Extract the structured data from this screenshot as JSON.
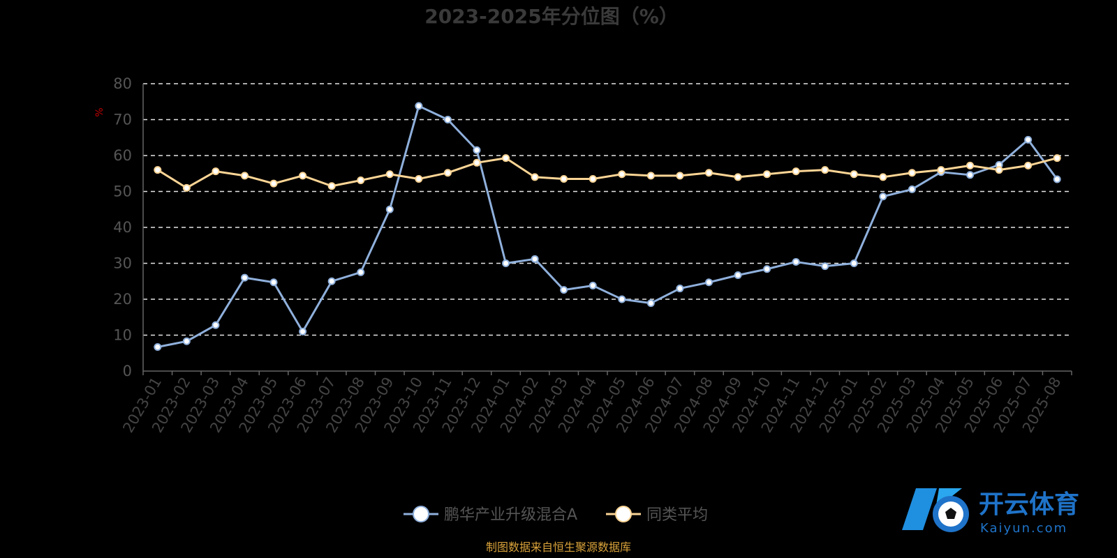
{
  "chart_data": {
    "type": "line",
    "title": "2023-2025年分位图（%）",
    "ylabel": "%",
    "ylim": [
      0,
      80
    ],
    "yticks": [
      0,
      10,
      20,
      30,
      40,
      50,
      60,
      70,
      80
    ],
    "grid": true,
    "legend_position": "bottom-center",
    "categories": [
      "2023-01",
      "2023-02",
      "2023-03",
      "2023-04",
      "2023-05",
      "2023-06",
      "2023-07",
      "2023-08",
      "2023-09",
      "2023-10",
      "2023-11",
      "2023-12",
      "2024-01",
      "2024-02",
      "2024-03",
      "2024-04",
      "2024-05",
      "2024-06",
      "2024-07",
      "2024-08",
      "2024-09",
      "2024-10",
      "2024-11",
      "2024-12",
      "2025-01",
      "2025-02",
      "2025-03",
      "2025-04",
      "2025-05",
      "2025-06",
      "2025-07",
      "2025-08"
    ],
    "series": [
      {
        "name": "鹏华产业升级混合A",
        "color": "#8fb0dc",
        "values": [
          6.7,
          8.3,
          12.8,
          26.0,
          24.7,
          11.0,
          25.0,
          27.5,
          45.0,
          73.8,
          70.0,
          61.5,
          30.0,
          31.2,
          22.6,
          23.8,
          20.0,
          18.9,
          23.0,
          24.7,
          26.7,
          28.4,
          30.4,
          29.2,
          30.0,
          48.6,
          50.6,
          55.4,
          54.6,
          57.4,
          64.4,
          53.4
        ]
      },
      {
        "name": "同类平均",
        "color": "#fcd595",
        "values": [
          56.0,
          51.0,
          55.6,
          54.4,
          52.2,
          54.4,
          51.5,
          53.1,
          54.8,
          53.5,
          55.2,
          58.0,
          59.3,
          54.0,
          53.5,
          53.5,
          54.8,
          54.4,
          54.4,
          55.2,
          54.0,
          54.8,
          55.6,
          56.0,
          54.8,
          54.0,
          55.2,
          56.0,
          57.2,
          56.0,
          57.2,
          59.3
        ]
      }
    ]
  },
  "source_note": "制图数据来自恒生聚源数据库",
  "watermark": {
    "name_cn": "开云体育",
    "name_en": "Kaiyun.com"
  }
}
